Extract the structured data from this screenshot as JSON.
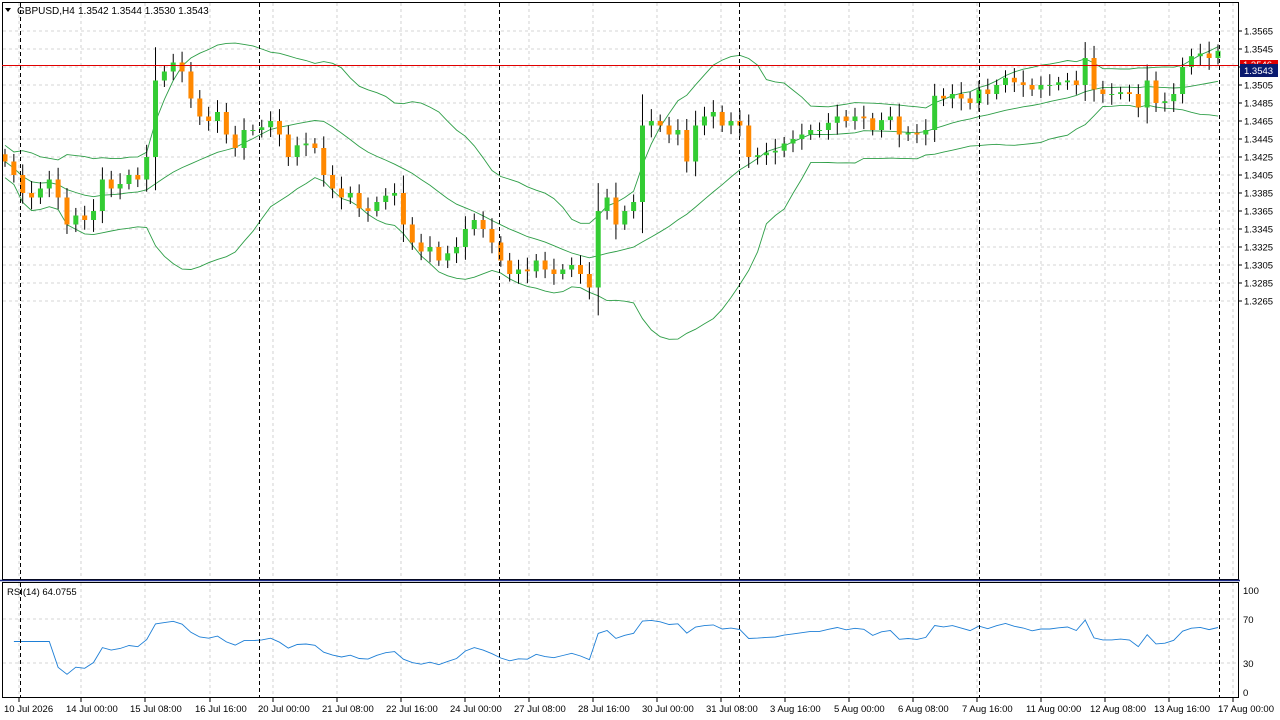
{
  "chart_window": {
    "symbol_timeframe": "GBPUSD,H4",
    "ohlc": "1.3542 1.3544 1.3530 1.3543",
    "current_price_label": "1.3543",
    "hidden_price_label": "1.3546"
  },
  "indicator_window": {
    "label": "RSI(14) 64.0755",
    "levels": [
      "100",
      "70",
      "30",
      "0"
    ]
  },
  "colors": {
    "bull": "#33cc33",
    "bear": "#ff8800",
    "bands": "#2e9e47",
    "rsi": "#1e7fd6",
    "grid": "#c8c8c8",
    "price_line": "#e00000",
    "price_label_bg": "#0a1a6e"
  },
  "chart_data": {
    "type": "candlestick",
    "y_axis_ticks": [
      "1.3565",
      "1.3545",
      "1.3525",
      "1.3505",
      "1.3485",
      "1.3465",
      "1.3445",
      "1.3425",
      "1.3405",
      "1.3385",
      "1.3365",
      "1.3345",
      "1.3325",
      "1.3305",
      "1.3285",
      "1.3265"
    ],
    "ylim": [
      1.3259,
      1.3576
    ],
    "x_axis_labels": [
      "10 Jul 2026",
      "14 Jul 00:00",
      "15 Jul 08:00",
      "16 Jul 16:00",
      "20 Jul 00:00",
      "21 Jul 08:00",
      "22 Jul 16:00",
      "24 Jul 00:00",
      "27 Jul 08:00",
      "28 Jul 16:00",
      "30 Jul 00:00",
      "31 Jul 08:00",
      "3 Aug 16:00",
      "5 Aug 00:00",
      "6 Aug 08:00",
      "7 Aug 16:00",
      "11 Aug 00:00",
      "12 Aug 08:00",
      "13 Aug 16:00",
      "17 Aug 00:00"
    ],
    "closes": [
      1.342,
      1.3405,
      1.3385,
      1.338,
      1.339,
      1.34,
      1.338,
      1.335,
      1.336,
      1.3355,
      1.3365,
      1.34,
      1.339,
      1.3395,
      1.3405,
      1.34,
      1.3425,
      1.351,
      1.352,
      1.353,
      1.352,
      1.349,
      1.347,
      1.3465,
      1.3475,
      1.345,
      1.3435,
      1.3455,
      1.3455,
      1.3458,
      1.3465,
      1.345,
      1.3425,
      1.3438,
      1.344,
      1.3435,
      1.3405,
      1.339,
      1.338,
      1.3385,
      1.3368,
      1.3365,
      1.3375,
      1.3382,
      1.3385,
      1.335,
      1.333,
      1.332,
      1.3325,
      1.331,
      1.3318,
      1.3325,
      1.3345,
      1.3355,
      1.3345,
      1.333,
      1.331,
      1.3295,
      1.33,
      1.3298,
      1.331,
      1.33,
      1.3295,
      1.33,
      1.3305,
      1.3295,
      1.328,
      1.3365,
      1.338,
      1.335,
      1.3365,
      1.3375,
      1.346,
      1.3465,
      1.346,
      1.345,
      1.3455,
      1.342,
      1.346,
      1.347,
      1.3475,
      1.346,
      1.3465,
      1.346,
      1.3425,
      1.3427,
      1.343,
      1.3432,
      1.344,
      1.3445,
      1.345,
      1.3455,
      1.3455,
      1.3463,
      1.347,
      1.3465,
      1.347,
      1.3468,
      1.3455,
      1.3466,
      1.347,
      1.345,
      1.3452,
      1.345,
      1.3455,
      1.3493,
      1.349,
      1.3495,
      1.349,
      1.3485,
      1.35,
      1.3495,
      1.3505,
      1.3513,
      1.3508,
      1.3505,
      1.35,
      1.3505,
      1.3505,
      1.3508,
      1.351,
      1.3505,
      1.3535,
      1.35,
      1.3495,
      1.3495,
      1.3497,
      1.3495,
      1.348,
      1.351,
      1.3485,
      1.3487,
      1.3495,
      1.3525,
      1.3537,
      1.354,
      1.3535,
      1.3543
    ]
  }
}
